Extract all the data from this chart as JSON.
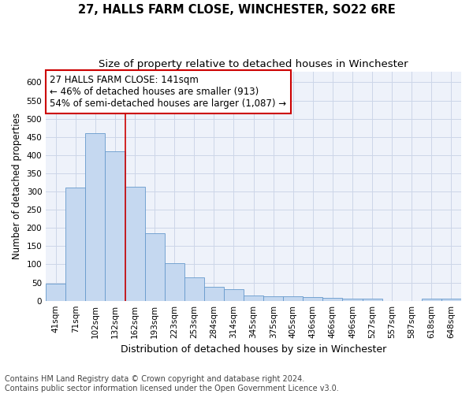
{
  "title": "27, HALLS FARM CLOSE, WINCHESTER, SO22 6RE",
  "subtitle": "Size of property relative to detached houses in Winchester",
  "xlabel": "Distribution of detached houses by size in Winchester",
  "ylabel": "Number of detached properties",
  "bar_labels": [
    "41sqm",
    "71sqm",
    "102sqm",
    "132sqm",
    "162sqm",
    "193sqm",
    "223sqm",
    "253sqm",
    "284sqm",
    "314sqm",
    "345sqm",
    "375sqm",
    "405sqm",
    "436sqm",
    "466sqm",
    "496sqm",
    "527sqm",
    "557sqm",
    "587sqm",
    "618sqm",
    "648sqm"
  ],
  "bar_values": [
    46,
    311,
    460,
    411,
    313,
    185,
    104,
    65,
    38,
    31,
    14,
    12,
    12,
    10,
    8,
    5,
    5,
    0,
    0,
    5,
    5
  ],
  "bar_color": "#c5d8f0",
  "bar_edge_color": "#6699cc",
  "bar_edge_width": 0.6,
  "vline_color": "#cc0000",
  "annotation_text": "27 HALLS FARM CLOSE: 141sqm\n← 46% of detached houses are smaller (913)\n54% of semi-detached houses are larger (1,087) →",
  "annotation_box_color": "#cc0000",
  "ylim": [
    0,
    630
  ],
  "yticks": [
    0,
    50,
    100,
    150,
    200,
    250,
    300,
    350,
    400,
    450,
    500,
    550,
    600
  ],
  "footnote": "Contains HM Land Registry data © Crown copyright and database right 2024.\nContains public sector information licensed under the Open Government Licence v3.0.",
  "grid_color": "#ccd6e8",
  "background_color": "#eef2fa",
  "title_fontsize": 10.5,
  "subtitle_fontsize": 9.5,
  "xlabel_fontsize": 9,
  "ylabel_fontsize": 8.5,
  "tick_fontsize": 7.5,
  "annotation_fontsize": 8.5,
  "footnote_fontsize": 7
}
